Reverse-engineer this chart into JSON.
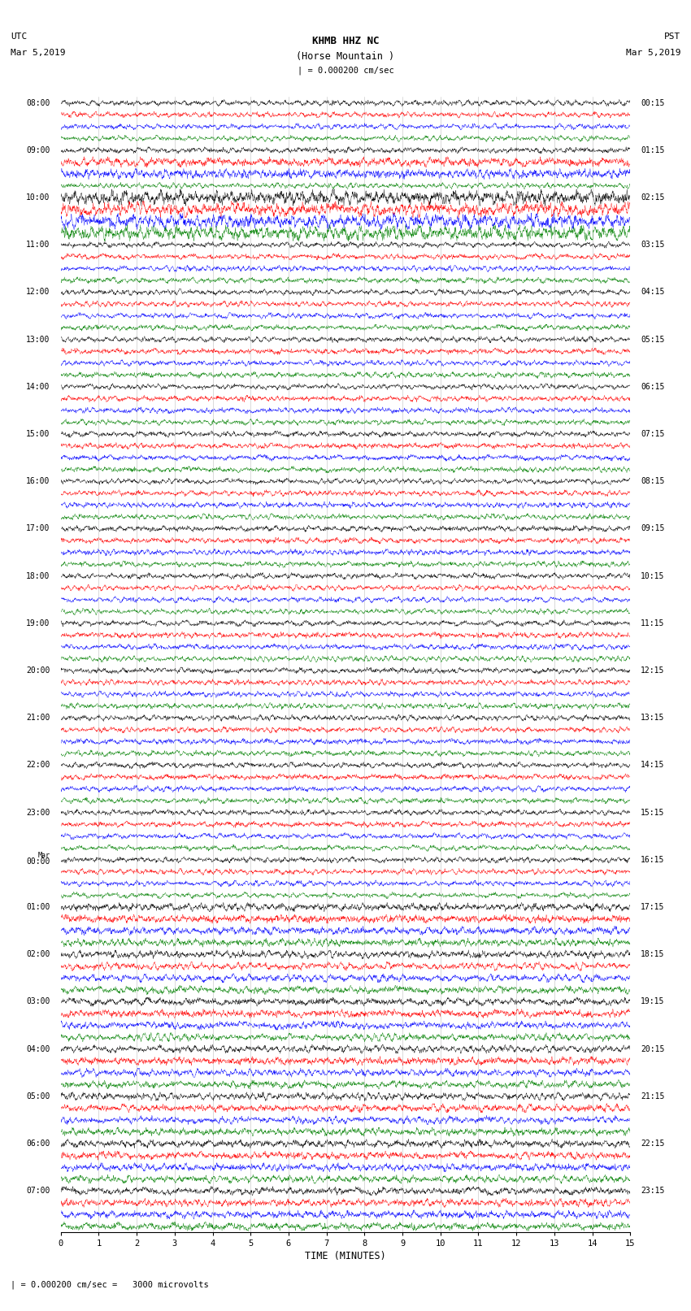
{
  "title_line1": "KHMB HHZ NC",
  "title_line2": "(Horse Mountain )",
  "scale_text": "| = 0.000200 cm/sec",
  "left_header_line1": "UTC",
  "left_header_line2": "Mar 5,2019",
  "right_header_line1": "PST",
  "right_header_line2": "Mar 5,2019",
  "xlabel": "TIME (MINUTES)",
  "bottom_annotation": "| = 0.000200 cm/sec =   3000 microvolts",
  "xlim": [
    0,
    15
  ],
  "n_rows": 24,
  "traces_per_row": 4,
  "trace_colors": [
    "black",
    "red",
    "blue",
    "green"
  ],
  "bg_color": "white",
  "utc_labels": [
    "08:00",
    "09:00",
    "10:00",
    "11:00",
    "12:00",
    "13:00",
    "14:00",
    "15:00",
    "16:00",
    "17:00",
    "18:00",
    "19:00",
    "20:00",
    "21:00",
    "22:00",
    "23:00",
    "Mar\n00:00",
    "01:00",
    "02:00",
    "03:00",
    "04:00",
    "05:00",
    "06:00",
    "07:00"
  ],
  "pst_labels": [
    "00:15",
    "01:15",
    "02:15",
    "03:15",
    "04:15",
    "05:15",
    "06:15",
    "07:15",
    "08:15",
    "09:15",
    "10:15",
    "11:15",
    "12:15",
    "13:15",
    "14:15",
    "15:15",
    "16:15",
    "17:15",
    "18:15",
    "19:15",
    "20:15",
    "21:15",
    "22:15",
    "23:15"
  ],
  "fig_width": 8.5,
  "fig_height": 16.13,
  "trace_amplitude": 0.28,
  "earthquake_row": 2,
  "earthquake_traces": [
    0,
    1,
    2,
    3
  ],
  "earthquake_amplitude": 0.7,
  "earthquake_row2": 1,
  "earthquake2_traces": [
    1,
    2
  ],
  "earthquake2_amplitude": 0.45,
  "large_amp_rows": [
    17,
    18,
    19,
    20,
    21,
    22,
    23
  ],
  "large_amp_value": 0.38
}
